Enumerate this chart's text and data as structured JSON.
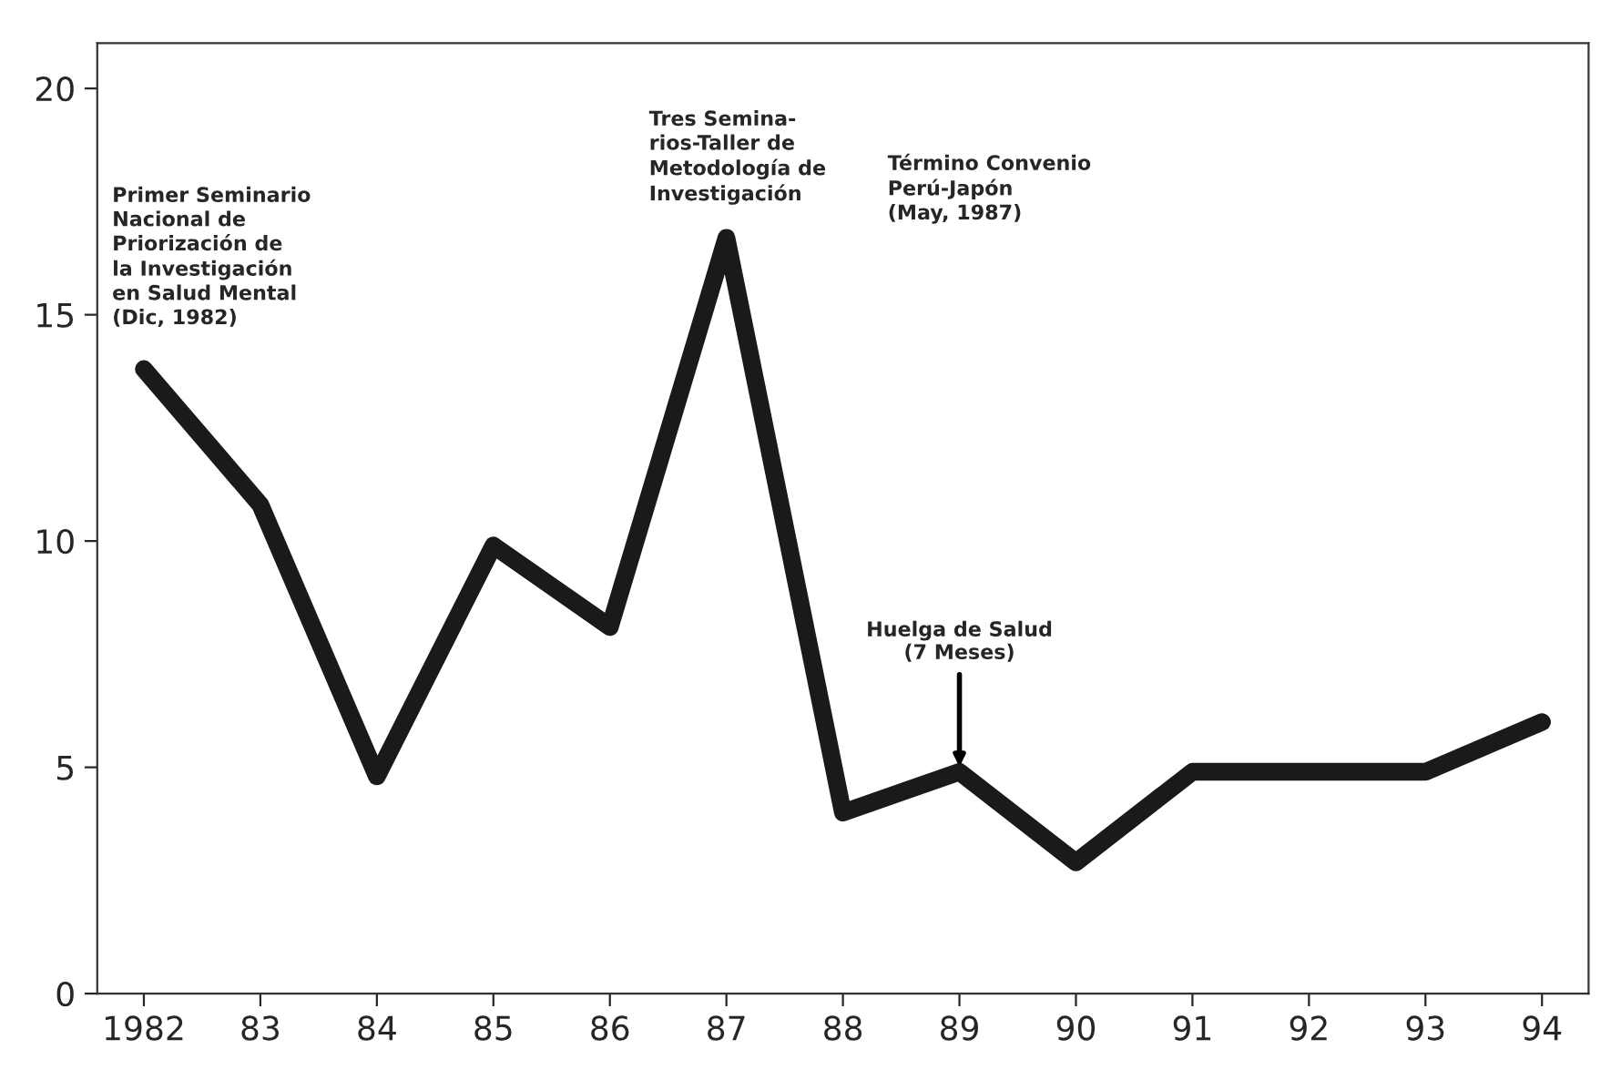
{
  "chart_data": {
    "type": "line",
    "categories": [
      "1982",
      "83",
      "84",
      "85",
      "86",
      "87",
      "88",
      "89",
      "90",
      "91",
      "92",
      "93",
      "94"
    ],
    "series": [
      {
        "color": "#1a1a1a",
        "values": [
          13.8,
          10.8,
          4.8,
          9.9,
          8.1,
          16.7,
          4.0,
          4.9,
          2.9,
          4.9,
          4.9,
          4.9,
          6.0
        ]
      }
    ],
    "ylim": [
      0,
      21
    ],
    "yticks": [
      0,
      5,
      10,
      15,
      20
    ],
    "grid": false,
    "marker": "none",
    "line_style": "solid",
    "annotations": [
      "Primer Seminario\nNacional de\nPriorización de\nla Investigación\nen Salud Mental\n(Dic, 1982)",
      "Tres Semina-\nrios-Taller de\nMetodología de\nInvestigación",
      "Término Convenio\nPerú-Japón\n(May, 1987)",
      {
        "text": "Huelga de Salud\n(7 Meses)",
        "x": "89",
        "y": 4.9
      }
    ]
  }
}
